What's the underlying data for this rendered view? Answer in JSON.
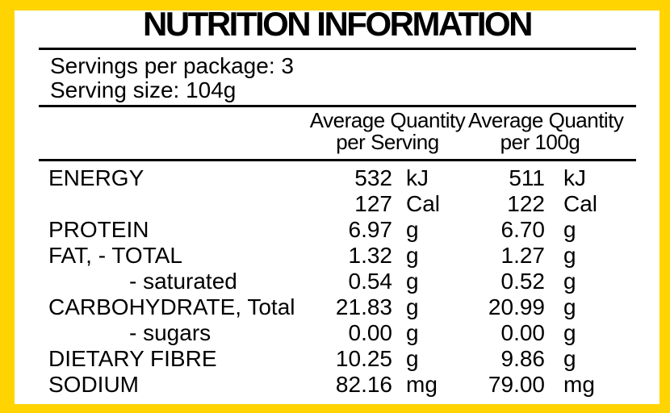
{
  "colors": {
    "border_yellow": "#FFD400",
    "panel_white": "#FFFFFF",
    "text_black": "#000000"
  },
  "header": {
    "title": "NUTRITION INFORMATION",
    "servings_per_package": "Servings per package: 3",
    "serving_size": "Serving size: 104g"
  },
  "table": {
    "columns": [
      {
        "line1": "Average Quantity",
        "line2": "per Serving"
      },
      {
        "line1": "Average Quantity",
        "line2": "per 100g"
      }
    ],
    "rows": [
      {
        "label": "ENERGY",
        "indent": false,
        "per_serving_value": "532",
        "per_serving_unit": "kJ",
        "per_100g_value": "511",
        "per_100g_unit": "kJ"
      },
      {
        "label": "",
        "indent": false,
        "per_serving_value": "127",
        "per_serving_unit": "Cal",
        "per_100g_value": "122",
        "per_100g_unit": "Cal"
      },
      {
        "label": "PROTEIN",
        "indent": false,
        "per_serving_value": "6.97",
        "per_serving_unit": "g",
        "per_100g_value": "6.70",
        "per_100g_unit": "g"
      },
      {
        "label": "FAT, - TOTAL",
        "indent": false,
        "per_serving_value": "1.32",
        "per_serving_unit": "g",
        "per_100g_value": "1.27",
        "per_100g_unit": "g"
      },
      {
        "label": "- saturated",
        "indent": true,
        "per_serving_value": "0.54",
        "per_serving_unit": "g",
        "per_100g_value": "0.52",
        "per_100g_unit": "g"
      },
      {
        "label": "CARBOHYDRATE, Total",
        "indent": false,
        "per_serving_value": "21.83",
        "per_serving_unit": "g",
        "per_100g_value": "20.99",
        "per_100g_unit": "g"
      },
      {
        "label": "- sugars",
        "indent": true,
        "per_serving_value": "0.00",
        "per_serving_unit": "g",
        "per_100g_value": "0.00",
        "per_100g_unit": "g"
      },
      {
        "label": "DIETARY FIBRE",
        "indent": false,
        "per_serving_value": "10.25",
        "per_serving_unit": "g",
        "per_100g_value": "9.86",
        "per_100g_unit": "g"
      },
      {
        "label": "SODIUM",
        "indent": false,
        "per_serving_value": "82.16",
        "per_serving_unit": "mg",
        "per_100g_value": "79.00",
        "per_100g_unit": "mg"
      }
    ]
  }
}
